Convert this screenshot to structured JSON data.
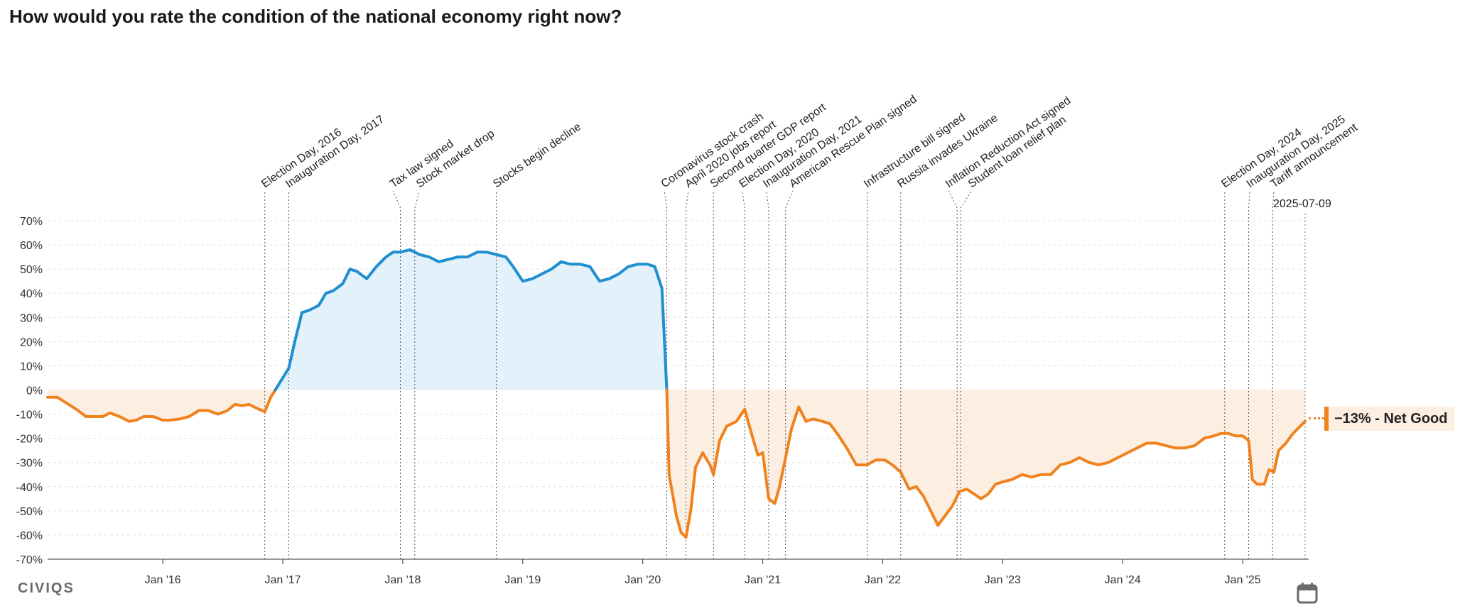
{
  "title": "How would you rate the condition of the national economy right now?",
  "brand": "CIVIQS",
  "callout": {
    "value": "−13% - Net Good"
  },
  "calendar_icon": "calendar-icon",
  "colors": {
    "positive": "#1f8fd0",
    "negative": "#f0821e",
    "positive_fill": "#e3f1fa",
    "negative_fill": "#fdeee2"
  },
  "chart_data": {
    "type": "area",
    "title": "How would you rate the condition of the national economy right now?",
    "series_name": "Net Good",
    "ylim": [
      -70,
      70
    ],
    "ytick_values": [
      70,
      60,
      50,
      40,
      30,
      20,
      10,
      0,
      -10,
      -20,
      -30,
      -40,
      -50,
      -60,
      -70
    ],
    "ytick_labels": [
      "70%",
      "60%",
      "50%",
      "40%",
      "30%",
      "20%",
      "10%",
      "0%",
      "-10%",
      "-20%",
      "-30%",
      "-40%",
      "-50%",
      "-60%",
      "-70%"
    ],
    "xlim": [
      2015.04,
      2025.55
    ],
    "xticks": [
      {
        "x": 2016.0,
        "label": "Jan '16"
      },
      {
        "x": 2017.0,
        "label": "Jan '17"
      },
      {
        "x": 2018.0,
        "label": "Jan '18"
      },
      {
        "x": 2019.0,
        "label": "Jan '19"
      },
      {
        "x": 2020.0,
        "label": "Jan '20"
      },
      {
        "x": 2021.0,
        "label": "Jan '21"
      },
      {
        "x": 2022.0,
        "label": "Jan '22"
      },
      {
        "x": 2023.0,
        "label": "Jan '23"
      },
      {
        "x": 2024.0,
        "label": "Jan '24"
      },
      {
        "x": 2025.0,
        "label": "Jan '25"
      }
    ],
    "current_date": "2025-07-09",
    "current_x": 2025.52,
    "current_value": -13,
    "events": [
      {
        "label": "Election Day, 2016",
        "x": 2016.85,
        "lx": 2016.85
      },
      {
        "label": "Inauguration Day, 2017",
        "x": 2017.05,
        "lx": 2017.05
      },
      {
        "label": "Tax law signed",
        "x": 2017.98,
        "lx": 2017.92
      },
      {
        "label": "Stock market drop",
        "x": 2018.1,
        "lx": 2018.14
      },
      {
        "label": "Stocks begin decline",
        "x": 2018.78,
        "lx": 2018.78
      },
      {
        "label": "Coronavirus stock crash",
        "x": 2020.2,
        "lx": 2020.18
      },
      {
        "label": "April 2020 jobs report",
        "x": 2020.36,
        "lx": 2020.38
      },
      {
        "label": "Second quarter GDP report",
        "x": 2020.59,
        "lx": 2020.59
      },
      {
        "label": "Election Day, 2020",
        "x": 2020.85,
        "lx": 2020.83
      },
      {
        "label": "Inauguration Day, 2021",
        "x": 2021.05,
        "lx": 2021.03
      },
      {
        "label": "American Rescue Plan signed",
        "x": 2021.19,
        "lx": 2021.25
      },
      {
        "label": "Infrastructure bill signed",
        "x": 2021.87,
        "lx": 2021.87
      },
      {
        "label": "Russia invades Ukraine",
        "x": 2022.15,
        "lx": 2022.15
      },
      {
        "label": "Inflation Reduction Act signed",
        "x": 2022.62,
        "lx": 2022.55
      },
      {
        "label": "Student loan relief plan",
        "x": 2022.65,
        "lx": 2022.74
      },
      {
        "label": "Election Day, 2024",
        "x": 2024.85,
        "lx": 2024.85
      },
      {
        "label": "Inauguration Day, 2025",
        "x": 2025.05,
        "lx": 2025.06
      },
      {
        "label": "Tariff announcement",
        "x": 2025.25,
        "lx": 2025.26
      }
    ],
    "points": [
      [
        2015.04,
        -3
      ],
      [
        2015.12,
        -3
      ],
      [
        2015.2,
        -5.5
      ],
      [
        2015.28,
        -8
      ],
      [
        2015.36,
        -11
      ],
      [
        2015.44,
        -11
      ],
      [
        2015.5,
        -11
      ],
      [
        2015.56,
        -9.5
      ],
      [
        2015.64,
        -11
      ],
      [
        2015.72,
        -13
      ],
      [
        2015.78,
        -12.5
      ],
      [
        2015.84,
        -11
      ],
      [
        2015.92,
        -11
      ],
      [
        2016.0,
        -12.5
      ],
      [
        2016.06,
        -12.5
      ],
      [
        2016.14,
        -12
      ],
      [
        2016.22,
        -11
      ],
      [
        2016.3,
        -8.5
      ],
      [
        2016.38,
        -8.5
      ],
      [
        2016.46,
        -10
      ],
      [
        2016.54,
        -8.5
      ],
      [
        2016.6,
        -6
      ],
      [
        2016.66,
        -6.5
      ],
      [
        2016.72,
        -6
      ],
      [
        2016.78,
        -7.5
      ],
      [
        2016.85,
        -9
      ],
      [
        2016.9,
        -3
      ],
      [
        2016.95,
        1
      ],
      [
        2017.0,
        5
      ],
      [
        2017.05,
        9
      ],
      [
        2017.1,
        20
      ],
      [
        2017.16,
        32
      ],
      [
        2017.22,
        33
      ],
      [
        2017.3,
        35
      ],
      [
        2017.36,
        40
      ],
      [
        2017.42,
        41
      ],
      [
        2017.5,
        44
      ],
      [
        2017.56,
        50
      ],
      [
        2017.62,
        49
      ],
      [
        2017.7,
        46
      ],
      [
        2017.78,
        51
      ],
      [
        2017.86,
        55
      ],
      [
        2017.92,
        57
      ],
      [
        2017.98,
        57
      ],
      [
        2018.06,
        58
      ],
      [
        2018.14,
        56
      ],
      [
        2018.22,
        55
      ],
      [
        2018.3,
        53
      ],
      [
        2018.38,
        54
      ],
      [
        2018.46,
        55
      ],
      [
        2018.54,
        55
      ],
      [
        2018.62,
        57
      ],
      [
        2018.7,
        57
      ],
      [
        2018.78,
        56
      ],
      [
        2018.86,
        55
      ],
      [
        2018.92,
        51
      ],
      [
        2019.0,
        45
      ],
      [
        2019.08,
        46
      ],
      [
        2019.16,
        48
      ],
      [
        2019.24,
        50
      ],
      [
        2019.32,
        53
      ],
      [
        2019.4,
        52
      ],
      [
        2019.48,
        52
      ],
      [
        2019.56,
        51
      ],
      [
        2019.64,
        45
      ],
      [
        2019.72,
        46
      ],
      [
        2019.8,
        48
      ],
      [
        2019.88,
        51
      ],
      [
        2019.96,
        52
      ],
      [
        2020.04,
        52
      ],
      [
        2020.1,
        51
      ],
      [
        2020.16,
        42
      ],
      [
        2020.2,
        0
      ],
      [
        2020.22,
        -35
      ],
      [
        2020.28,
        -52
      ],
      [
        2020.32,
        -59
      ],
      [
        2020.36,
        -61
      ],
      [
        2020.4,
        -50
      ],
      [
        2020.44,
        -32
      ],
      [
        2020.5,
        -26
      ],
      [
        2020.56,
        -31
      ],
      [
        2020.59,
        -35
      ],
      [
        2020.64,
        -21
      ],
      [
        2020.7,
        -15
      ],
      [
        2020.78,
        -13
      ],
      [
        2020.85,
        -8
      ],
      [
        2020.9,
        -17
      ],
      [
        2020.96,
        -27
      ],
      [
        2021.0,
        -26
      ],
      [
        2021.05,
        -45
      ],
      [
        2021.1,
        -47
      ],
      [
        2021.14,
        -40
      ],
      [
        2021.19,
        -28
      ],
      [
        2021.24,
        -16
      ],
      [
        2021.3,
        -7
      ],
      [
        2021.36,
        -13
      ],
      [
        2021.42,
        -12
      ],
      [
        2021.5,
        -13
      ],
      [
        2021.56,
        -14
      ],
      [
        2021.62,
        -18
      ],
      [
        2021.7,
        -24
      ],
      [
        2021.78,
        -31
      ],
      [
        2021.87,
        -31
      ],
      [
        2021.94,
        -29
      ],
      [
        2022.02,
        -29
      ],
      [
        2022.08,
        -31
      ],
      [
        2022.15,
        -34
      ],
      [
        2022.22,
        -41
      ],
      [
        2022.28,
        -40
      ],
      [
        2022.34,
        -44
      ],
      [
        2022.4,
        -50
      ],
      [
        2022.46,
        -56
      ],
      [
        2022.52,
        -52
      ],
      [
        2022.58,
        -48
      ],
      [
        2022.64,
        -42
      ],
      [
        2022.7,
        -41
      ],
      [
        2022.76,
        -43
      ],
      [
        2022.82,
        -45
      ],
      [
        2022.88,
        -43
      ],
      [
        2022.94,
        -39
      ],
      [
        2023.0,
        -38
      ],
      [
        2023.08,
        -37
      ],
      [
        2023.16,
        -35
      ],
      [
        2023.24,
        -36
      ],
      [
        2023.32,
        -35
      ],
      [
        2023.4,
        -35
      ],
      [
        2023.48,
        -31
      ],
      [
        2023.56,
        -30
      ],
      [
        2023.64,
        -28
      ],
      [
        2023.72,
        -30
      ],
      [
        2023.8,
        -31
      ],
      [
        2023.88,
        -30
      ],
      [
        2023.96,
        -28
      ],
      [
        2024.04,
        -26
      ],
      [
        2024.12,
        -24
      ],
      [
        2024.2,
        -22
      ],
      [
        2024.28,
        -22
      ],
      [
        2024.36,
        -23
      ],
      [
        2024.44,
        -24
      ],
      [
        2024.52,
        -24
      ],
      [
        2024.6,
        -23
      ],
      [
        2024.68,
        -20
      ],
      [
        2024.76,
        -19
      ],
      [
        2024.82,
        -18
      ],
      [
        2024.88,
        -18
      ],
      [
        2024.94,
        -19
      ],
      [
        2025.0,
        -19
      ],
      [
        2025.05,
        -21
      ],
      [
        2025.08,
        -37
      ],
      [
        2025.12,
        -39
      ],
      [
        2025.18,
        -39
      ],
      [
        2025.22,
        -33
      ],
      [
        2025.26,
        -34
      ],
      [
        2025.3,
        -25
      ],
      [
        2025.36,
        -22
      ],
      [
        2025.42,
        -18
      ],
      [
        2025.48,
        -15
      ],
      [
        2025.52,
        -13
      ]
    ]
  }
}
